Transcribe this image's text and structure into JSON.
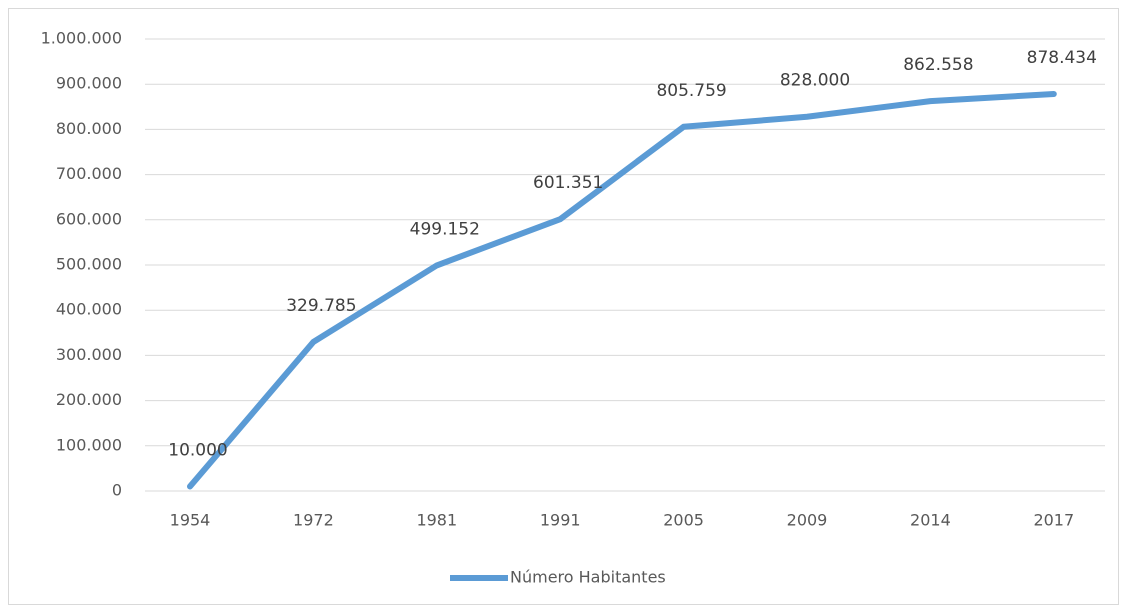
{
  "chart_data": {
    "type": "line",
    "categories": [
      "1954",
      "1972",
      "1981",
      "1991",
      "2005",
      "2009",
      "2014",
      "2017"
    ],
    "series": [
      {
        "name": "Número Habitantes",
        "color": "#5b9bd5",
        "values": [
          10000,
          329785,
          499152,
          601351,
          805759,
          828000,
          862558,
          878434
        ],
        "value_labels": [
          "10.000",
          "329.785",
          "499.152",
          "601.351",
          "805.759",
          "828.000",
          "862.558",
          "878.434"
        ]
      }
    ],
    "ylim": [
      0,
      1000000
    ],
    "yticks": [
      0,
      {
        "value": 100000,
        "label": "100.000"
      },
      {
        "value": 200000,
        "label": "200.000"
      },
      {
        "value": 300000,
        "label": "300.000"
      },
      {
        "value": 400000,
        "label": "400.000"
      },
      {
        "value": 500000,
        "label": "500.000"
      },
      {
        "value": 600000,
        "label": "600.000"
      },
      {
        "value": 700000,
        "label": "700.000"
      },
      {
        "value": 800000,
        "label": "800.000"
      },
      {
        "value": 900000,
        "label": "900.000"
      },
      {
        "value": 1000000,
        "label": "1.000.000"
      }
    ],
    "grid": true,
    "legend": "bottom"
  }
}
